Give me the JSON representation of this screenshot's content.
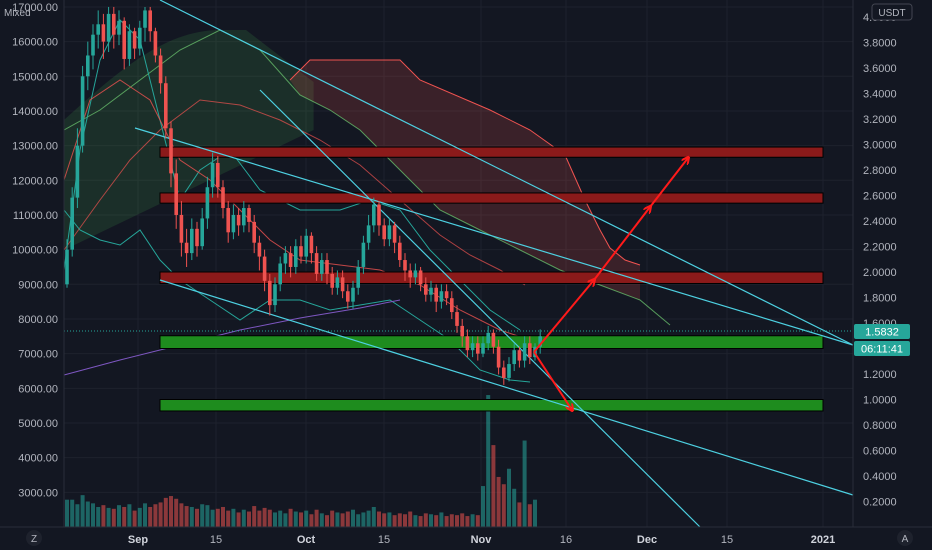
{
  "chart_data": {
    "type": "candlestick",
    "left_axis": {
      "label": "Mixed",
      "range": [
        2000,
        17000
      ],
      "ticks": [
        "3000.00",
        "4000.00",
        "5000.00",
        "6000.00",
        "7000.00",
        "8000.00",
        "9000.00",
        "10000.00",
        "11000.00",
        "12000.00",
        "13000.00",
        "14000.00",
        "15000.00",
        "16000.00",
        "17000.00"
      ]
    },
    "right_axis": {
      "label": "USDT",
      "range": [
        0.0,
        4.2
      ],
      "ticks": [
        "0.2000",
        "0.4000",
        "0.6000",
        "0.8000",
        "1.0000",
        "1.2000",
        "1.4000",
        "1.6000",
        "1.8000",
        "2.0000",
        "2.2000",
        "2.4000",
        "2.6000",
        "2.8000",
        "3.0000",
        "3.2000",
        "3.4000",
        "3.6000",
        "3.8000",
        "4.0000"
      ]
    },
    "x_ticks": [
      {
        "label": "Sep",
        "pos": 138
      },
      {
        "label": "15",
        "pos": 216
      },
      {
        "label": "Oct",
        "pos": 306
      },
      {
        "label": "15",
        "pos": 384
      },
      {
        "label": "Nov",
        "pos": 481
      },
      {
        "label": "16",
        "pos": 566
      },
      {
        "label": "Dec",
        "pos": 647
      },
      {
        "label": "15",
        "pos": 727
      },
      {
        "label": "2021",
        "pos": 823
      }
    ],
    "current_price": "1.5832",
    "countdown": "06:11:41",
    "zones": [
      {
        "type": "resistance",
        "low": 2.9,
        "high": 2.98
      },
      {
        "type": "resistance",
        "low": 2.54,
        "high": 2.62
      },
      {
        "type": "resistance",
        "low": 1.91,
        "high": 2.0
      },
      {
        "type": "support",
        "low": 1.4,
        "high": 1.5
      },
      {
        "type": "support",
        "low": 0.91,
        "high": 1.0
      }
    ],
    "projection_bullish": [
      [
        534,
        352
      ],
      [
        594,
        280
      ],
      [
        650,
        207
      ],
      [
        688,
        158
      ]
    ],
    "projection_bearish": [
      [
        534,
        352
      ],
      [
        572,
        410
      ]
    ],
    "candles": [
      [
        9000,
        10000,
        10300,
        8900
      ],
      [
        10000,
        11500,
        11800,
        9800
      ],
      [
        11500,
        13000,
        13500,
        11200
      ],
      [
        13000,
        15000,
        15300,
        12800
      ],
      [
        15000,
        15600,
        16000,
        14600
      ],
      [
        15600,
        16200,
        16500,
        15200
      ],
      [
        16200,
        16500,
        16900,
        15800
      ],
      [
        16500,
        16000,
        16800,
        15500
      ],
      [
        16000,
        16800,
        17000,
        15700
      ],
      [
        16800,
        16200,
        17000,
        15800
      ],
      [
        16200,
        16600,
        16900,
        15900
      ],
      [
        16600,
        15500,
        16700,
        15200
      ],
      [
        15500,
        16300,
        16500,
        15300
      ],
      [
        16300,
        15800,
        16400,
        15500
      ],
      [
        15800,
        16400,
        16600,
        15600
      ],
      [
        16400,
        16900,
        17000,
        16000
      ],
      [
        16900,
        16300,
        17000,
        16000
      ],
      [
        16300,
        15600,
        16400,
        15400
      ],
      [
        15600,
        14800,
        15800,
        14500
      ],
      [
        14800,
        13500,
        15000,
        13200
      ],
      [
        13500,
        12200,
        13700,
        11800
      ],
      [
        12200,
        11000,
        12600,
        10600
      ],
      [
        11000,
        10200,
        11400,
        9800
      ],
      [
        10200,
        9900,
        10600,
        9500
      ],
      [
        9900,
        10600,
        10900,
        9700
      ],
      [
        10600,
        10100,
        10800,
        9800
      ],
      [
        10100,
        10900,
        11200,
        10000
      ],
      [
        10900,
        11800,
        12100,
        10600
      ],
      [
        11800,
        12500,
        12800,
        11500
      ],
      [
        12500,
        11800,
        12700,
        11500
      ],
      [
        11800,
        11200,
        12000,
        10900
      ],
      [
        11200,
        10500,
        11400,
        10200
      ],
      [
        10500,
        11000,
        11300,
        10300
      ],
      [
        11000,
        10700,
        11200,
        10400
      ],
      [
        10700,
        11200,
        11400,
        10500
      ],
      [
        11200,
        10800,
        11300,
        10500
      ],
      [
        10800,
        10200,
        11000,
        9900
      ],
      [
        10200,
        9800,
        10400,
        9400
      ],
      [
        9800,
        9100,
        10000,
        8800
      ],
      [
        9100,
        8400,
        9300,
        8100
      ],
      [
        8400,
        9000,
        9200,
        8200
      ],
      [
        9000,
        9600,
        9800,
        8800
      ],
      [
        9600,
        9900,
        10100,
        9300
      ],
      [
        9900,
        9500,
        10100,
        9200
      ],
      [
        9500,
        10100,
        10300,
        9300
      ],
      [
        10100,
        9800,
        10400,
        9600
      ],
      [
        9800,
        10400,
        10600,
        9600
      ],
      [
        10400,
        9900,
        10500,
        9600
      ],
      [
        9900,
        9300,
        10100,
        9100
      ],
      [
        9300,
        9700,
        9900,
        9100
      ],
      [
        9700,
        9300,
        9900,
        9000
      ],
      [
        9300,
        8900,
        9500,
        8700
      ],
      [
        8900,
        9200,
        9400,
        8700
      ],
      [
        9200,
        8800,
        9400,
        8600
      ],
      [
        8800,
        8500,
        9000,
        8300
      ],
      [
        8500,
        8900,
        9100,
        8300
      ],
      [
        8900,
        9500,
        9700,
        8700
      ],
      [
        9500,
        10200,
        10400,
        9300
      ],
      [
        10200,
        10700,
        11000,
        10000
      ],
      [
        10700,
        11300,
        11500,
        10500
      ],
      [
        11300,
        10700,
        11400,
        10400
      ],
      [
        10700,
        10300,
        10900,
        10100
      ],
      [
        10300,
        10700,
        10900,
        10100
      ],
      [
        10700,
        10200,
        10800,
        9900
      ],
      [
        10200,
        9700,
        10400,
        9500
      ],
      [
        9700,
        9400,
        9900,
        9100
      ],
      [
        9400,
        9200,
        9600,
        8900
      ],
      [
        9200,
        9400,
        9600,
        9000
      ],
      [
        9400,
        9000,
        9500,
        8800
      ],
      [
        9000,
        8700,
        9200,
        8500
      ],
      [
        8700,
        8900,
        9100,
        8500
      ],
      [
        8900,
        8500,
        9000,
        8200
      ],
      [
        8500,
        8800,
        9000,
        8300
      ],
      [
        8800,
        8600,
        9000,
        8400
      ],
      [
        8600,
        8200,
        8800,
        8000
      ],
      [
        8200,
        7800,
        8400,
        7600
      ],
      [
        7800,
        7500,
        8000,
        7200
      ],
      [
        7500,
        7100,
        7700,
        6900
      ],
      [
        7100,
        7300,
        7500,
        6900
      ],
      [
        7300,
        7000,
        7500,
        6800
      ],
      [
        7000,
        7300,
        7500,
        6900
      ],
      [
        7300,
        7600,
        7800,
        7100
      ],
      [
        7600,
        7200,
        7700,
        7000
      ],
      [
        7200,
        6600,
        7400,
        6400
      ],
      [
        6600,
        6300,
        6800,
        6100
      ],
      [
        6300,
        6700,
        6900,
        6200
      ],
      [
        6700,
        7100,
        7300,
        6500
      ],
      [
        7100,
        6800,
        7200,
        6600
      ],
      [
        6800,
        7300,
        7500,
        6600
      ],
      [
        7300,
        6900,
        7500,
        6700
      ],
      [
        6900,
        7200,
        7300,
        6800
      ],
      [
        7200,
        7500,
        7700,
        7000
      ]
    ],
    "volumes": [
      3,
      3,
      2.5,
      3.5,
      2.8,
      2.6,
      2.2,
      2.4,
      2.1,
      2,
      2.4,
      2.2,
      2.5,
      1.8,
      2.1,
      2.6,
      2.2,
      2.5,
      2.7,
      3.2,
      3.4,
      3.1,
      2.6,
      2.3,
      2.2,
      2,
      2.5,
      2.4,
      1.9,
      2,
      2.2,
      1.8,
      2,
      1.6,
      1.9,
      1.7,
      2.3,
      1.8,
      2.1,
      1.9,
      1.6,
      1.8,
      1.5,
      2,
      1.7,
      1.6,
      1.8,
      1.4,
      1.9,
      1.5,
      1.3,
      1.8,
      1.6,
      1.5,
      1.7,
      1.9,
      1.4,
      1.6,
      1.8,
      2.2,
      1.7,
      1.5,
      1.6,
      1.3,
      1.5,
      1.4,
      1.7,
      1.3,
      1.2,
      1.5,
      1.4,
      1.3,
      1.6,
      1.2,
      1.4,
      1.3,
      1.5,
      1.2,
      1.4,
      1.3,
      4.5,
      14.5,
      9,
      5.5,
      4.7,
      6.4,
      4.2,
      2.7,
      9.5,
      2.5,
      3
    ],
    "icons": {
      "left_corner": "Z",
      "right_corner": "A"
    }
  }
}
